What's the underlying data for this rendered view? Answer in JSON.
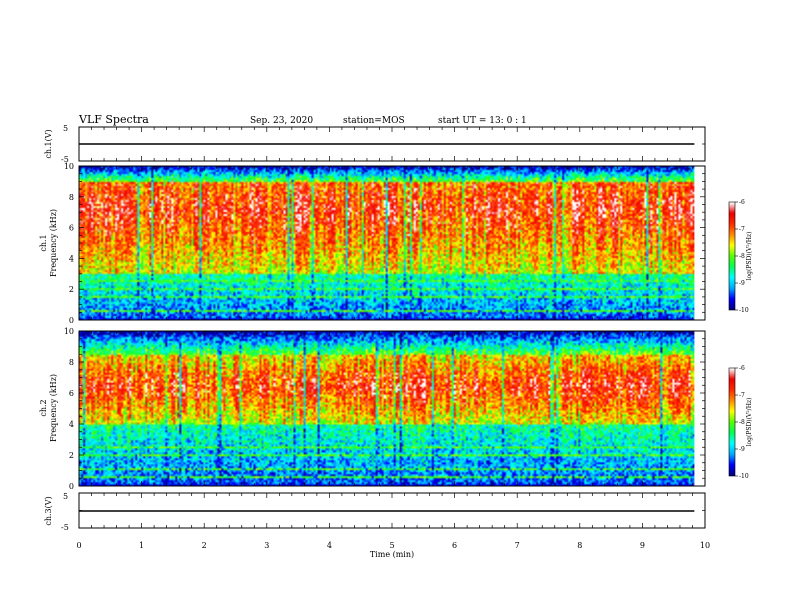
{
  "header": {
    "title": "VLF Spectra",
    "date": "Sep. 23, 2020",
    "station": "station=MOS",
    "start": "start  UT =   13: 0  : 1"
  },
  "colors": {
    "scale": [
      "#000080",
      "#0000ff",
      "#00aaff",
      "#00ffff",
      "#00ff55",
      "#55ff00",
      "#ffff00",
      "#ff8800",
      "#ff2a00",
      "#ee0000",
      "#ffffff"
    ]
  },
  "chart_data": [
    {
      "type": "line",
      "name": "ch1-waveform",
      "ylabel": "ch.1(V)",
      "ylim": [
        -5,
        5
      ],
      "yticks": [
        "5",
        "-5"
      ],
      "x": [
        0,
        9.83
      ],
      "y": [
        0,
        0
      ]
    },
    {
      "type": "heatmap",
      "name": "ch1-spectrogram",
      "ylabel_line1": "ch.1",
      "ylabel_line2": "Frequency  (kHz)",
      "ylim": [
        0,
        10
      ],
      "yticks": [
        "0",
        "2",
        "4",
        "6",
        "8",
        "10"
      ],
      "xlim": [
        0,
        10
      ],
      "data_end_min": 9.83,
      "band_khz": [
        3.0,
        9.0
      ],
      "peak_khz": 7.3,
      "colorbar": {
        "label": "log(PSD)(V²/Hz)",
        "ticks": [
          "-6",
          "-7",
          "-8",
          "-9",
          "-10"
        ],
        "range": [
          -10,
          -6
        ]
      }
    },
    {
      "type": "heatmap",
      "name": "ch2-spectrogram",
      "ylabel_line1": "ch.2",
      "ylabel_line2": "Frequency  (kHz)",
      "ylim": [
        0,
        10
      ],
      "yticks": [
        "0",
        "2",
        "4",
        "6",
        "8",
        "10"
      ],
      "xlim": [
        0,
        10
      ],
      "data_end_min": 9.83,
      "band_khz": [
        4.0,
        8.5
      ],
      "peak_khz": 6.5,
      "colorbar": {
        "label": "log(PSD)(V²/Hz)",
        "ticks": [
          "-6",
          "-7",
          "-8",
          "-9",
          "-10"
        ],
        "range": [
          -10,
          -6
        ]
      }
    },
    {
      "type": "line",
      "name": "ch3-waveform",
      "ylabel": "ch.3(V)",
      "ylim": [
        -5,
        5
      ],
      "yticks": [
        "5",
        "-5"
      ],
      "x": [
        0,
        9.83
      ],
      "y": [
        0,
        0
      ]
    }
  ],
  "xaxis": {
    "label": "Time  (min)",
    "ticks": [
      "0",
      "1",
      "2",
      "3",
      "4",
      "5",
      "6",
      "7",
      "8",
      "9",
      "10"
    ],
    "xlim": [
      0,
      10
    ]
  }
}
